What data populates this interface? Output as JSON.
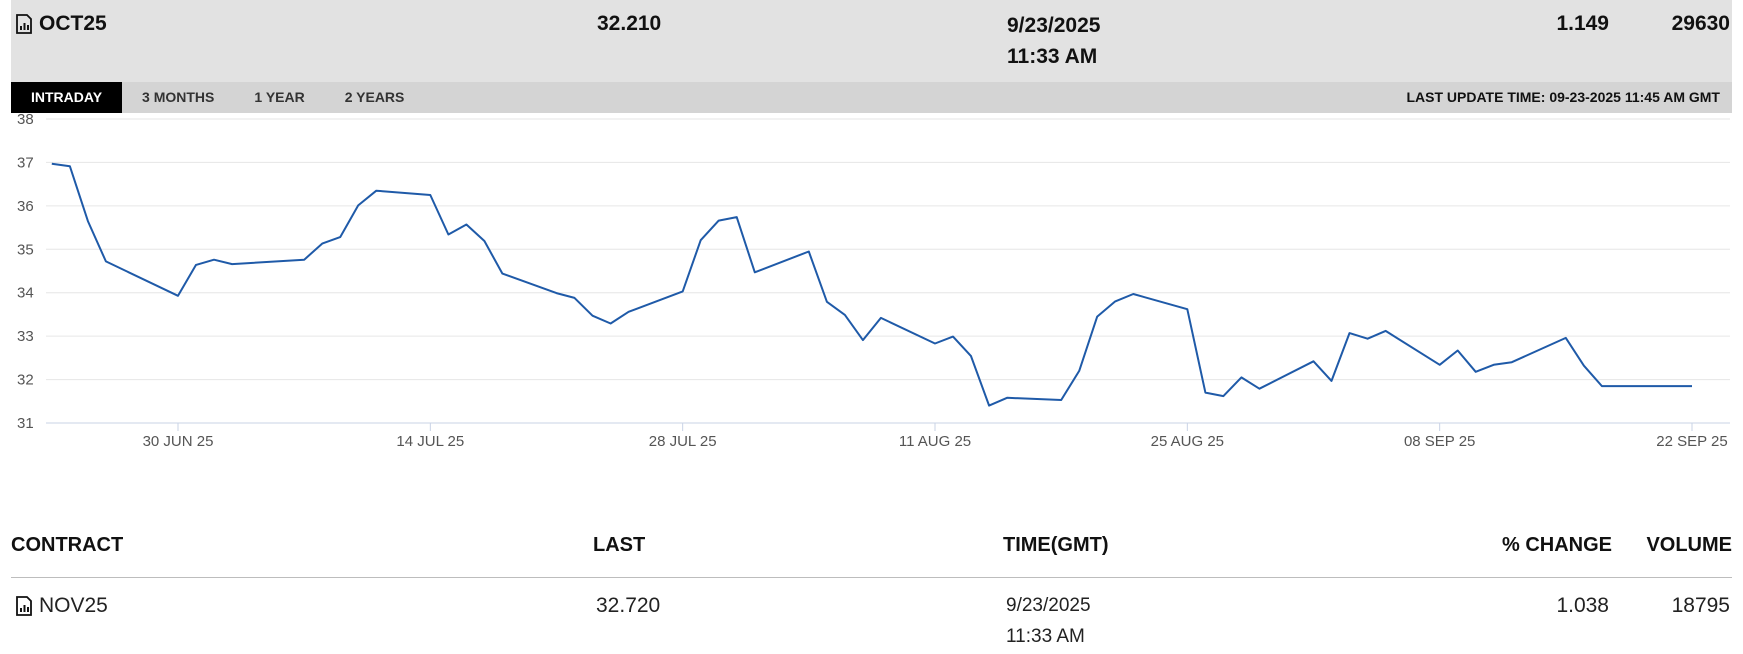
{
  "selected_contract": {
    "contract": "OCT25",
    "last": "32.210",
    "date": "9/23/2025",
    "time": "11:33 AM",
    "percent_change": "1.149",
    "volume": "29630"
  },
  "tabs": [
    {
      "label": "INTRADAY",
      "active": true
    },
    {
      "label": "3 MONTHS",
      "active": false
    },
    {
      "label": "1 YEAR",
      "active": false
    },
    {
      "label": "2 YEARS",
      "active": false
    }
  ],
  "last_update": "LAST UPDATE TIME: 09-23-2025 11:45 AM GMT",
  "chart_data": {
    "type": "line",
    "title": "",
    "xlabel": "",
    "ylabel": "",
    "ylim": [
      31,
      38
    ],
    "yticks": [
      "31",
      "32",
      "33",
      "34",
      "35",
      "36",
      "37",
      "38"
    ],
    "xticks": [
      {
        "label": "30 JUN 25",
        "date": "2025-06-30"
      },
      {
        "label": "14 JUL 25",
        "date": "2025-07-14"
      },
      {
        "label": "28 JUL 25",
        "date": "2025-07-28"
      },
      {
        "label": "11 AUG 25",
        "date": "2025-08-11"
      },
      {
        "label": "25 AUG 25",
        "date": "2025-08-25"
      },
      {
        "label": "08 SEP 25",
        "date": "2025-09-08"
      },
      {
        "label": "22 SEP 25",
        "date": "2025-09-22"
      }
    ],
    "grid": true,
    "line_color": "#1f5aa8",
    "series": [
      {
        "x": [
          "2025-06-23",
          "2025-06-24",
          "2025-06-25",
          "2025-06-26",
          "2025-06-30",
          "2025-07-01",
          "2025-07-02",
          "2025-07-03",
          "2025-07-07",
          "2025-07-08",
          "2025-07-09",
          "2025-07-10",
          "2025-07-11",
          "2025-07-14",
          "2025-07-15",
          "2025-07-16",
          "2025-07-17",
          "2025-07-18",
          "2025-07-21",
          "2025-07-22",
          "2025-07-23",
          "2025-07-24",
          "2025-07-25",
          "2025-07-28",
          "2025-07-29",
          "2025-07-30",
          "2025-07-31",
          "2025-08-01",
          "2025-08-04",
          "2025-08-05",
          "2025-08-06",
          "2025-08-07",
          "2025-08-08",
          "2025-08-11",
          "2025-08-12",
          "2025-08-13",
          "2025-08-14",
          "2025-08-15",
          "2025-08-18",
          "2025-08-19",
          "2025-08-20",
          "2025-08-21",
          "2025-08-22",
          "2025-08-25",
          "2025-08-26",
          "2025-08-27",
          "2025-08-28",
          "2025-08-29",
          "2025-09-01",
          "2025-09-02",
          "2025-09-03",
          "2025-09-04",
          "2025-09-05",
          "2025-09-08",
          "2025-09-09",
          "2025-09-10",
          "2025-09-11",
          "2025-09-12",
          "2025-09-15",
          "2025-09-16",
          "2025-09-17",
          "2025-09-18",
          "2025-09-19",
          "2025-09-22"
        ],
        "y": [
          36.97,
          36.91,
          35.65,
          34.72,
          33.93,
          34.64,
          34.76,
          34.66,
          34.76,
          35.13,
          35.28,
          36.01,
          36.35,
          36.25,
          35.34,
          35.57,
          35.19,
          34.44,
          33.99,
          33.88,
          33.47,
          33.29,
          33.56,
          34.03,
          35.21,
          35.66,
          35.74,
          34.47,
          34.95,
          33.79,
          33.49,
          32.91,
          33.42,
          32.83,
          32.99,
          32.54,
          31.4,
          31.58,
          31.53,
          32.2,
          33.45,
          33.8,
          33.97,
          33.62,
          31.7,
          31.62,
          32.05,
          31.79,
          32.42,
          31.97,
          33.07,
          32.94,
          33.12,
          32.34,
          32.67,
          32.18,
          32.34,
          32.4,
          32.96,
          32.32,
          31.85,
          31.85,
          31.85,
          31.85
        ]
      }
    ]
  },
  "contracts_table": {
    "headers": {
      "contract": "CONTRACT",
      "last": "LAST",
      "time": "TIME(GMT)",
      "change": "% CHANGE",
      "volume": "VOLUME"
    },
    "rows": [
      {
        "contract": "NOV25",
        "last": "32.720",
        "date": "9/23/2025",
        "time": "11:33 AM",
        "percent_change": "1.038",
        "volume": "18795"
      }
    ]
  }
}
